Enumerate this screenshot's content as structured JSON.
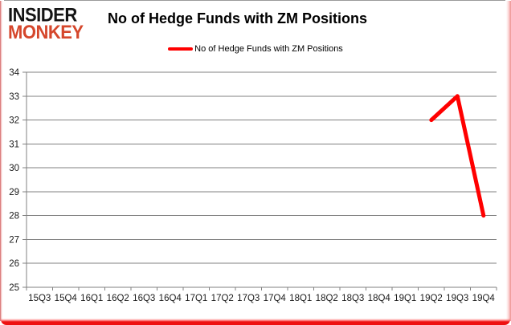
{
  "logo": {
    "line1": "INSIDER",
    "line2": "MONKEY",
    "line1_color": "#141414",
    "line2_color": "#d5472c"
  },
  "title": "No of Hedge Funds with ZM Positions",
  "legend": {
    "label": "No of Hedge Funds with ZM Positions",
    "swatch_color": "#ff0000"
  },
  "chart_data": {
    "type": "line",
    "title": "No of Hedge Funds with ZM Positions",
    "categories": [
      "15Q3",
      "15Q4",
      "16Q1",
      "16Q2",
      "16Q3",
      "16Q4",
      "17Q1",
      "17Q2",
      "17Q3",
      "17Q4",
      "18Q1",
      "18Q2",
      "18Q3",
      "18Q4",
      "19Q1",
      "19Q2",
      "19Q3",
      "19Q4"
    ],
    "series": [
      {
        "name": "No of Hedge Funds with ZM Positions",
        "color": "#ff0000",
        "values": [
          null,
          null,
          null,
          null,
          null,
          null,
          null,
          null,
          null,
          null,
          null,
          null,
          null,
          null,
          null,
          32,
          33,
          28
        ]
      }
    ],
    "ylim": [
      25,
      34
    ],
    "yticks": [
      25,
      26,
      27,
      28,
      29,
      30,
      31,
      32,
      33,
      34
    ],
    "grid": true,
    "legend_position": "top",
    "grid_color": "#808080",
    "axis_color": "#808080",
    "label_color": "#1a1a1a"
  }
}
